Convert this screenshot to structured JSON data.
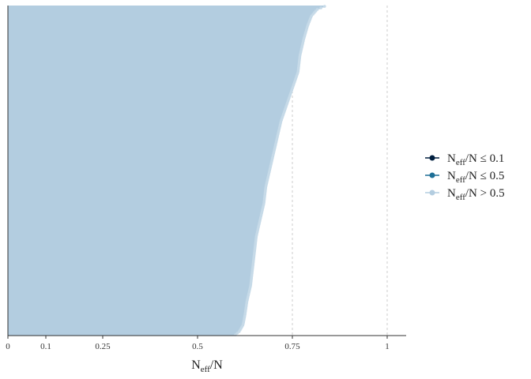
{
  "chart_data": {
    "type": "bar",
    "orientation": "horizontal",
    "xlabel": {
      "main": "N",
      "sub": "eff",
      "tail": "/N"
    },
    "xlim": [
      0,
      1.05
    ],
    "x_ticks": [
      0,
      0.1,
      0.25,
      0.5,
      0.75,
      1
    ],
    "x_tick_labels": [
      "0",
      "0.1",
      "0.25",
      "0.5",
      "0.75",
      "1"
    ],
    "reference_lines": [
      0.1,
      0.25,
      0.5,
      0.75,
      1
    ],
    "grid": false,
    "legend_position": "right",
    "colors": {
      "low": "#011f3f",
      "mid": "#1e6f96",
      "high": "#b3cde0",
      "high_border": "#c6dae8",
      "ref_line": "#cccccc"
    },
    "legend": [
      {
        "main": "N",
        "sub": "eff",
        "tail": "/N ≤ 0.1",
        "color_key": "low"
      },
      {
        "main": "N",
        "sub": "eff",
        "tail": "/N ≤ 0.5",
        "color_key": "mid"
      },
      {
        "main": "N",
        "sub": "eff",
        "tail": "/N > 0.5",
        "color_key": "high"
      }
    ],
    "ratio_profile": [
      [
        0.0,
        0.835
      ],
      [
        0.01,
        0.815
      ],
      [
        0.03,
        0.8
      ],
      [
        0.06,
        0.79
      ],
      [
        0.1,
        0.78
      ],
      [
        0.15,
        0.77
      ],
      [
        0.2,
        0.765
      ],
      [
        0.25,
        0.75
      ],
      [
        0.3,
        0.735
      ],
      [
        0.35,
        0.72
      ],
      [
        0.4,
        0.71
      ],
      [
        0.45,
        0.7
      ],
      [
        0.5,
        0.69
      ],
      [
        0.55,
        0.68
      ],
      [
        0.6,
        0.675
      ],
      [
        0.65,
        0.665
      ],
      [
        0.7,
        0.655
      ],
      [
        0.75,
        0.65
      ],
      [
        0.8,
        0.645
      ],
      [
        0.85,
        0.64
      ],
      [
        0.9,
        0.63
      ],
      [
        0.94,
        0.625
      ],
      [
        0.97,
        0.62
      ],
      [
        0.99,
        0.61
      ],
      [
        1.0,
        0.6
      ]
    ]
  }
}
